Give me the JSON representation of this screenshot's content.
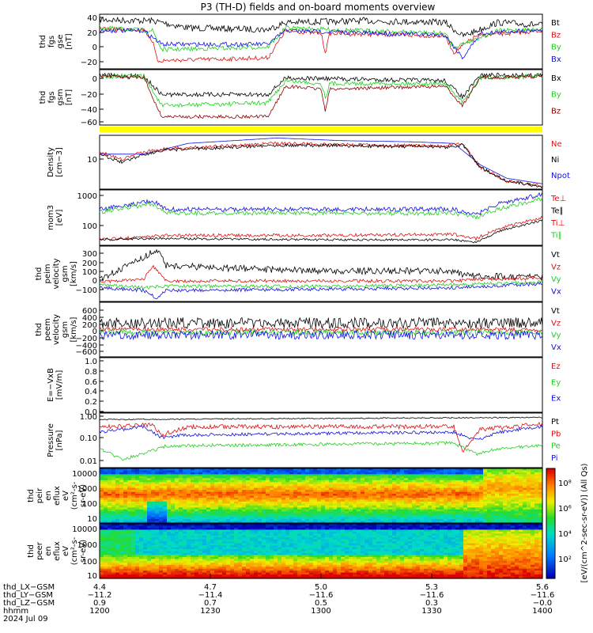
{
  "title": "P3 (TH-D) fields and on-board moments overview",
  "colors": {
    "black": "#000000",
    "red": "#e01010",
    "green": "#20d020",
    "blue": "#1010e0",
    "darkred": "#8b0000",
    "yellow": "#ffff00"
  },
  "chart_data": [
    {
      "id": "p1",
      "type": "line",
      "ylabel": [
        "thd",
        "fgs",
        "gse",
        "[nT]"
      ],
      "yticks": [
        "40",
        "20",
        "0",
        "−20"
      ],
      "legend": [
        {
          "name": "Bt",
          "color": "black"
        },
        {
          "name": "Bz",
          "color": "red"
        },
        {
          "name": "By",
          "color": "green"
        },
        {
          "name": "Bx",
          "color": "blue"
        }
      ]
    },
    {
      "id": "p2",
      "type": "line",
      "ylabel": [
        "thd",
        "fgs",
        "gsm",
        "[nT]"
      ],
      "yticks": [
        "0",
        "−20",
        "−40",
        "−60"
      ],
      "legend": [
        {
          "name": "Bx",
          "color": "black"
        },
        {
          "name": "By",
          "color": "green"
        },
        {
          "name": "Bz",
          "color": "darkred"
        }
      ]
    },
    {
      "id": "p3",
      "type": "line",
      "ylabel": [
        "Density",
        "[cm−3]"
      ],
      "yticks": [
        "10"
      ],
      "legend": [
        {
          "name": "Ne",
          "color": "red"
        },
        {
          "name": "Ni",
          "color": "black"
        },
        {
          "name": "Npot",
          "color": "blue"
        }
      ]
    },
    {
      "id": "p4",
      "type": "line",
      "ylabel": [
        "mom3",
        "[eV]"
      ],
      "yticks": [
        "1000",
        "100"
      ],
      "legend": [
        {
          "name": "Te⊥",
          "color": "red"
        },
        {
          "name": "Te∥",
          "color": "black"
        },
        {
          "name": "Ti⊥",
          "color": "red"
        },
        {
          "name": "Ti∥",
          "color": "green"
        }
      ]
    },
    {
      "id": "p5",
      "type": "line",
      "ylabel": [
        "thd",
        "peim",
        "velocity",
        "gsm",
        "[km/s]"
      ],
      "yticks": [
        "300",
        "200",
        "100",
        "0",
        "−100"
      ],
      "legend": [
        {
          "name": "Vt",
          "color": "black"
        },
        {
          "name": "Vz",
          "color": "red"
        },
        {
          "name": "Vy",
          "color": "green"
        },
        {
          "name": "Vx",
          "color": "blue"
        }
      ]
    },
    {
      "id": "p6",
      "type": "line",
      "ylabel": [
        "thd",
        "peem",
        "velocity",
        "gsm",
        "[km/s]"
      ],
      "yticks": [
        "600",
        "400",
        "200",
        "0",
        "−200",
        "−400",
        "−600"
      ],
      "legend": [
        {
          "name": "Vt",
          "color": "black"
        },
        {
          "name": "Vz",
          "color": "red"
        },
        {
          "name": "Vy",
          "color": "green"
        },
        {
          "name": "Vx",
          "color": "blue"
        }
      ]
    },
    {
      "id": "p7",
      "type": "line",
      "ylabel": [
        "E=−VxB",
        "[mV/m]"
      ],
      "yticks": [
        "1.0",
        "0.8",
        "0.6",
        "0.4",
        "0.2",
        "0.0"
      ],
      "legend": [
        {
          "name": "Ez",
          "color": "red"
        },
        {
          "name": "Ey",
          "color": "green"
        },
        {
          "name": "Ex",
          "color": "blue"
        }
      ]
    },
    {
      "id": "p8",
      "type": "line",
      "ylabel": [
        "Pressure",
        "[nPa]"
      ],
      "yticks": [
        "1.00",
        "0.10",
        "0.01"
      ],
      "legend": [
        {
          "name": "Pt",
          "color": "black"
        },
        {
          "name": "Pb",
          "color": "red"
        },
        {
          "name": "Pe",
          "color": "green"
        },
        {
          "name": "Pi",
          "color": "blue"
        }
      ]
    },
    {
      "id": "p9",
      "type": "heatmap",
      "ylabel": [
        "thd",
        "peir",
        "en",
        "eflux",
        "eV",
        "(cm²-s-",
        "sr-eV)"
      ],
      "yticks": [
        "10000",
        "1000",
        "100",
        "10"
      ]
    },
    {
      "id": "p10",
      "type": "heatmap",
      "ylabel": [
        "thd",
        "peer",
        "en",
        "eflux",
        "eV",
        "(cm²-s-",
        "sr-eV)"
      ],
      "yticks": [
        "10000",
        "1000",
        "100",
        "10"
      ]
    }
  ],
  "colorbar": {
    "label": "[eV/(cm^2-sec-sr-eV)] (All Qs)",
    "ticks": [
      "10⁸",
      "10⁶",
      "10⁴",
      "10²"
    ]
  },
  "xaxis": {
    "rows": [
      {
        "label": "thd_LX−GSM",
        "values": [
          "4.4",
          "4.7",
          "5.0",
          "5.3",
          "5.6"
        ]
      },
      {
        "label": "thd_LY−GSM",
        "values": [
          "−11.2",
          "−11.4",
          "−11.6",
          "−11.6",
          "−11.6"
        ]
      },
      {
        "label": "thd_LZ−GSM",
        "values": [
          "0.9",
          "0.7",
          "0.5",
          "0.3",
          "−0.0"
        ]
      },
      {
        "label": "hhmm",
        "values": [
          "1200",
          "1230",
          "1300",
          "1330",
          "1400"
        ]
      }
    ],
    "date": "2024 Jul 09"
  }
}
